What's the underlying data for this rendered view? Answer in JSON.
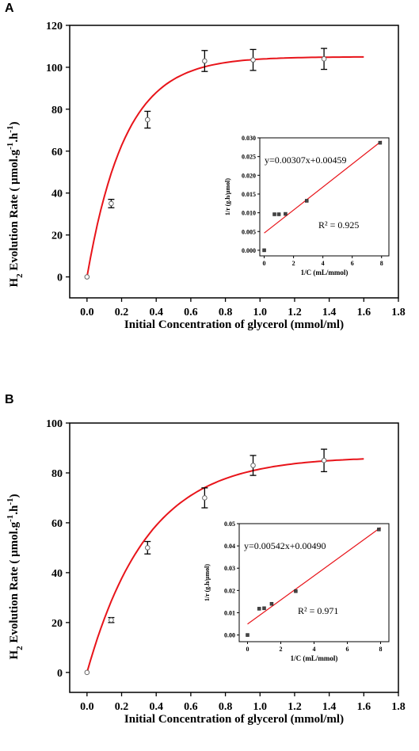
{
  "panels": [
    {
      "letter": "A",
      "ylabel_pre": "H",
      "ylabel_sub": "2",
      "ylabel_mid": " Evolution Rate (  μmol.g",
      "ylabel_sup1": "-1",
      "ylabel_mid2": ".h",
      "ylabel_sup2": "-1",
      "ylabel_post": ")"
    },
    {
      "letter": "B",
      "ylabel_pre": "H",
      "ylabel_sub": "2",
      "ylabel_mid": " Evolution Rate (  μmol.g",
      "ylabel_sup1": "-1",
      "ylabel_mid2": ".h",
      "ylabel_sup2": "-1",
      "ylabel_post": ")"
    }
  ],
  "chart_data": [
    {
      "type": "scatter",
      "panel": "A",
      "xlabel": "Initial Concentration of glycerol (mmol/ml)",
      "xlim": [
        -0.1,
        1.8
      ],
      "ylim": [
        -10,
        120
      ],
      "xticks": [
        "0.0",
        "0.2",
        "0.4",
        "0.6",
        "0.8",
        "1.0",
        "1.2",
        "1.4",
        "1.6",
        "1.8"
      ],
      "yticks": [
        "0",
        "20",
        "40",
        "60",
        "80",
        "100",
        "120"
      ],
      "series": [
        {
          "x": [
            0.0,
            0.14,
            0.35,
            0.68,
            0.96,
            1.37
          ],
          "y": [
            0,
            35,
            75,
            103,
            103.5,
            104
          ],
          "err": [
            0,
            2,
            4,
            5,
            5,
            5
          ]
        }
      ],
      "fit_curve": {
        "color": "#e8141a",
        "x_range": [
          0.0,
          1.6
        ],
        "ymax": 105,
        "tau": 0.22
      },
      "inset": {
        "type": "scatter",
        "xlabel": "1/C (mL/mmol)",
        "ylabel": "1/r (g.h/μmol)",
        "xlim": [
          -0.3,
          8.5
        ],
        "ylim": [
          -0.0015,
          0.03
        ],
        "xticks": [
          "0",
          "2",
          "4",
          "6",
          "8"
        ],
        "yticks": [
          "0.000",
          "0.005",
          "0.010",
          "0.015",
          "0.020",
          "0.025",
          "0.030"
        ],
        "x": [
          0.0,
          0.7,
          1.0,
          1.45,
          2.9,
          7.9
        ],
        "y": [
          0.0,
          0.0096,
          0.0096,
          0.0097,
          0.0132,
          0.0287
        ],
        "fit": {
          "slope": 0.00307,
          "intercept": 0.00459,
          "x_range": [
            0,
            8
          ]
        },
        "equation": "y=0.00307x+0.00459",
        "r2": "R² = 0.925"
      }
    },
    {
      "type": "scatter",
      "panel": "B",
      "xlabel": "Initial Concentration of glycerol (mmol/ml)",
      "xlim": [
        -0.1,
        1.8
      ],
      "ylim": [
        -8,
        100
      ],
      "xticks": [
        "0.0",
        "0.2",
        "0.4",
        "0.6",
        "0.8",
        "1.0",
        "1.2",
        "1.4",
        "1.6",
        "1.8"
      ],
      "yticks": [
        "0",
        "20",
        "40",
        "60",
        "80",
        "100"
      ],
      "series": [
        {
          "x": [
            0.0,
            0.14,
            0.35,
            0.68,
            0.96,
            1.37
          ],
          "y": [
            0,
            21,
            50,
            70,
            83,
            85
          ],
          "err": [
            0,
            1,
            2.5,
            4,
            4,
            4.5
          ]
        }
      ],
      "fit_curve": {
        "color": "#e8141a",
        "x_range": [
          0.0,
          1.6
        ],
        "ymax": 86.5,
        "tau": 0.35
      },
      "inset": {
        "type": "scatter",
        "xlabel": "1/C (mL/mmol)",
        "ylabel": "1/r (g.h/μmol)",
        "xlim": [
          -0.5,
          8.5
        ],
        "ylim": [
          -0.003,
          0.05
        ],
        "xticks": [
          "0",
          "2",
          "4",
          "6",
          "8"
        ],
        "yticks": [
          "0.00",
          "0.01",
          "0.02",
          "0.03",
          "0.04",
          "0.05"
        ],
        "x": [
          0.0,
          0.7,
          1.0,
          1.45,
          2.9,
          7.9
        ],
        "y": [
          0.0,
          0.0118,
          0.012,
          0.014,
          0.0197,
          0.0474
        ],
        "fit": {
          "slope": 0.00542,
          "intercept": 0.0049,
          "x_range": [
            0,
            8
          ]
        },
        "equation": "y=0.00542x+0.00490",
        "r2": "R² = 0.971"
      }
    }
  ]
}
